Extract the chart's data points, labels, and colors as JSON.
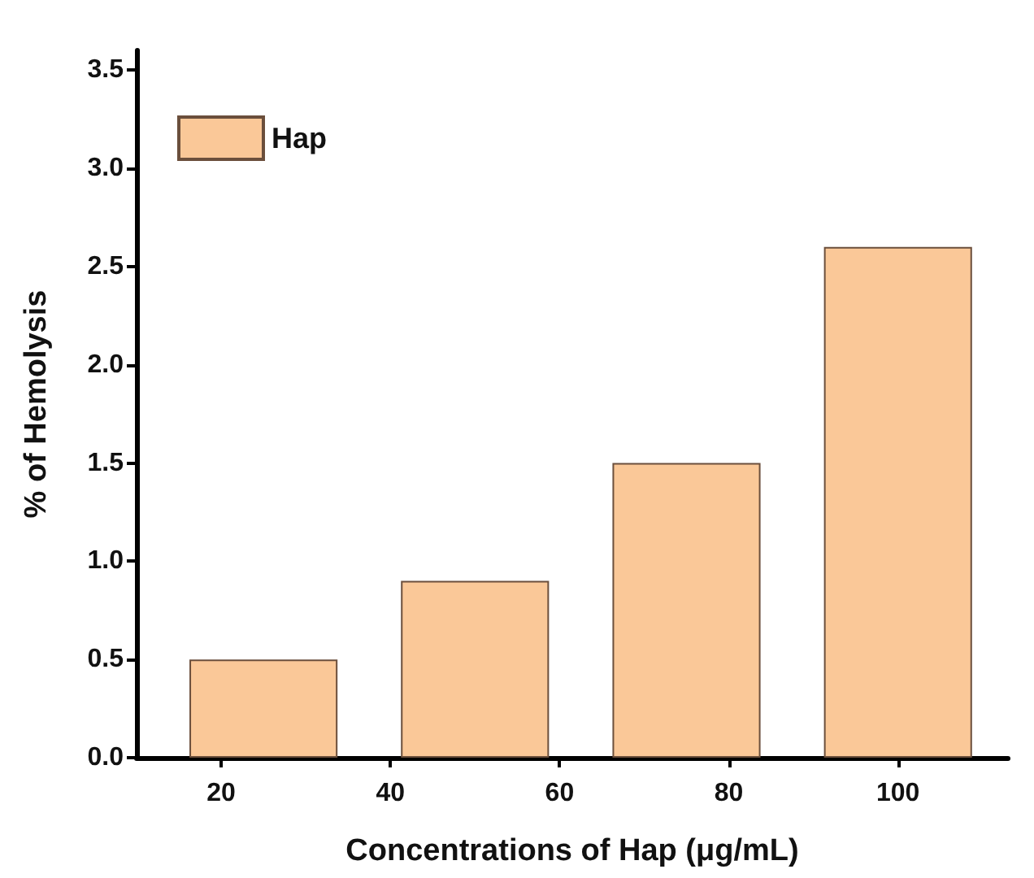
{
  "chart_data": {
    "type": "bar",
    "xlabel": "Concentrations of Hap (μg/mL)",
    "ylabel": "% of Hemolysis",
    "x": [
      25,
      50,
      75,
      100
    ],
    "series": [
      {
        "name": "Hap",
        "color": "#fac898",
        "values": [
          0.5,
          0.9,
          1.5,
          2.6
        ]
      }
    ],
    "xlim": [
      10,
      113
    ],
    "xticks": [
      20,
      40,
      60,
      80,
      100
    ],
    "ylim": [
      0,
      3.6
    ],
    "yticks": [
      {
        "value": 0,
        "label": "0.0"
      },
      0.5,
      {
        "value": 1,
        "label": "1.0"
      },
      1.5,
      {
        "value": 2,
        "label": "2.0"
      },
      2.5,
      {
        "value": 3,
        "label": "3.0"
      },
      3.5
    ],
    "grid": false,
    "legend": "top left"
  }
}
